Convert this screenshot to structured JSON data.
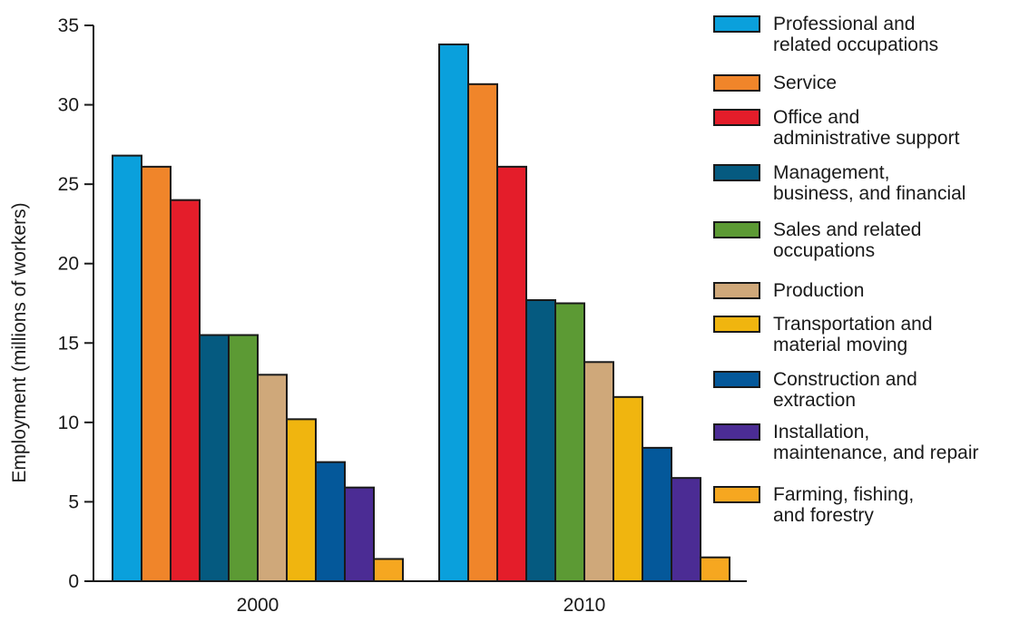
{
  "chart_data": {
    "type": "bar",
    "categories": [
      "2000",
      "2010"
    ],
    "ylabel": "Employment (millions of workers)",
    "xlabel": "",
    "title": "",
    "ylim": [
      0,
      35
    ],
    "yticks": [
      0,
      5,
      10,
      15,
      20,
      25,
      30,
      35
    ],
    "grid": false,
    "legend_position": "right",
    "series": [
      {
        "legend_lines": [
          "Professional and",
          "related occupations"
        ],
        "color": "#0aa0dc",
        "values": [
          26.8,
          33.8
        ]
      },
      {
        "legend_lines": [
          "Service"
        ],
        "color": "#f0852a",
        "values": [
          26.1,
          31.3
        ]
      },
      {
        "legend_lines": [
          "Office and",
          "administrative support"
        ],
        "color": "#e41d2a",
        "values": [
          24.0,
          26.1
        ]
      },
      {
        "legend_lines": [
          "Management,",
          "business, and financial"
        ],
        "color": "#055a80",
        "values": [
          15.5,
          17.7
        ]
      },
      {
        "legend_lines": [
          "Sales and related",
          "occupations"
        ],
        "color": "#5c9a34",
        "values": [
          15.5,
          17.5
        ]
      },
      {
        "legend_lines": [
          "Production"
        ],
        "color": "#cfa87a",
        "values": [
          13.0,
          13.8
        ]
      },
      {
        "legend_lines": [
          "Transportation and",
          "material moving"
        ],
        "color": "#f0b50f",
        "values": [
          10.2,
          11.6
        ]
      },
      {
        "legend_lines": [
          "Construction and",
          "extraction"
        ],
        "color": "#04589a",
        "values": [
          7.5,
          8.4
        ]
      },
      {
        "legend_lines": [
          "Installation,",
          "maintenance, and repair"
        ],
        "color": "#4b2c94",
        "values": [
          5.9,
          6.5
        ]
      },
      {
        "legend_lines": [
          "Farming, fishing,",
          "and forestry"
        ],
        "color": "#f6a720",
        "values": [
          1.4,
          1.5
        ]
      }
    ]
  }
}
